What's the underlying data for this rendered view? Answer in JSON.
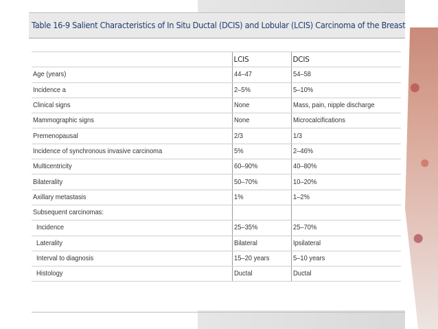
{
  "title": "Table 16-9 Salient Characteristics of In Situ Ductal (DCIS) and Lobular (LCIS) Carcinoma of the Breast",
  "columns": [
    "",
    "LCIS",
    "DCIS"
  ],
  "rows": [
    {
      "label": "Age (years)",
      "lcis": "44–47",
      "dcis": "54–58",
      "indent": false
    },
    {
      "label": "Incidence a",
      "lcis": "2–5%",
      "dcis": "5–10%",
      "indent": false
    },
    {
      "label": "Clinical signs",
      "lcis": "None",
      "dcis": "Mass, pain, nipple discharge",
      "indent": false
    },
    {
      "label": "Mammographic signs",
      "lcis": "None",
      "dcis": "Microcalcifications",
      "indent": false
    },
    {
      "label": "Premenopausal",
      "lcis": "2/3",
      "dcis": "1/3",
      "indent": false
    },
    {
      "label": "Incidence of synchronous invasive carcinoma",
      "lcis": "5%",
      "dcis": "2–46%",
      "indent": false
    },
    {
      "label": "Multicentricity",
      "lcis": "60–90%",
      "dcis": "40–80%",
      "indent": false
    },
    {
      "label": "Bilaterality",
      "lcis": "50–70%",
      "dcis": "10–20%",
      "indent": false
    },
    {
      "label": "Axillary metastasis",
      "lcis": "1%",
      "dcis": "1–2%",
      "indent": false
    },
    {
      "label": "Subsequent carcinomas:",
      "lcis": "",
      "dcis": "",
      "indent": false
    },
    {
      "label": "Incidence",
      "lcis": "25–35%",
      "dcis": "25–70%",
      "indent": true
    },
    {
      "label": "Laterality",
      "lcis": "Bilateral",
      "dcis": "Ipsilateral",
      "indent": true
    },
    {
      "label": "Interval to diagnosis",
      "lcis": "15–20 years",
      "dcis": "5–10 years",
      "indent": true
    },
    {
      "label": "Histology",
      "lcis": "Ductal",
      "dcis": "Ductal",
      "indent": true
    }
  ]
}
